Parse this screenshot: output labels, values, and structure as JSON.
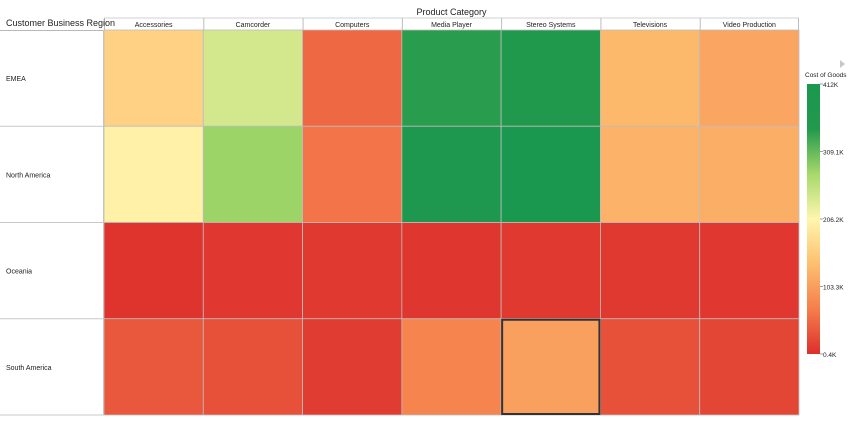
{
  "chart_data": {
    "type": "heatmap",
    "title": "",
    "column_axis_title": "Product Category",
    "row_axis_title": "Customer Business Region",
    "columns": [
      "Accessories",
      "Camcorder",
      "Computers",
      "Media Player",
      "Stereo Systems",
      "Televisions",
      "Video Production"
    ],
    "rows": [
      "EMEA",
      "North America",
      "Oceania",
      "South America"
    ],
    "values": [
      [
        160000,
        240000,
        50000,
        340000,
        360000,
        130000,
        110000
      ],
      [
        200000,
        280000,
        60000,
        380000,
        400000,
        125000,
        120000
      ],
      [
        5000,
        8000,
        9000,
        7000,
        10000,
        9000,
        8000
      ],
      [
        35000,
        30000,
        12000,
        75000,
        105000,
        30000,
        20000
      ]
    ],
    "highlighted_cell": {
      "row": "South America",
      "column": "Stereo Systems"
    },
    "legend": {
      "title": "Cost of Goods",
      "position": "right",
      "min": 400,
      "max": 412000,
      "tick_values": [
        412000,
        309100,
        206200,
        103300,
        400
      ],
      "tick_labels": [
        "412K",
        "309.1K",
        "206.2K",
        "103.3K",
        "0.4K"
      ],
      "colors": [
        "#dd2f2c",
        "#f57e4c",
        "#fdbf6f",
        "#fff6ae",
        "#a6d96a",
        "#22994c",
        "#1a9850"
      ]
    },
    "grid": true
  }
}
